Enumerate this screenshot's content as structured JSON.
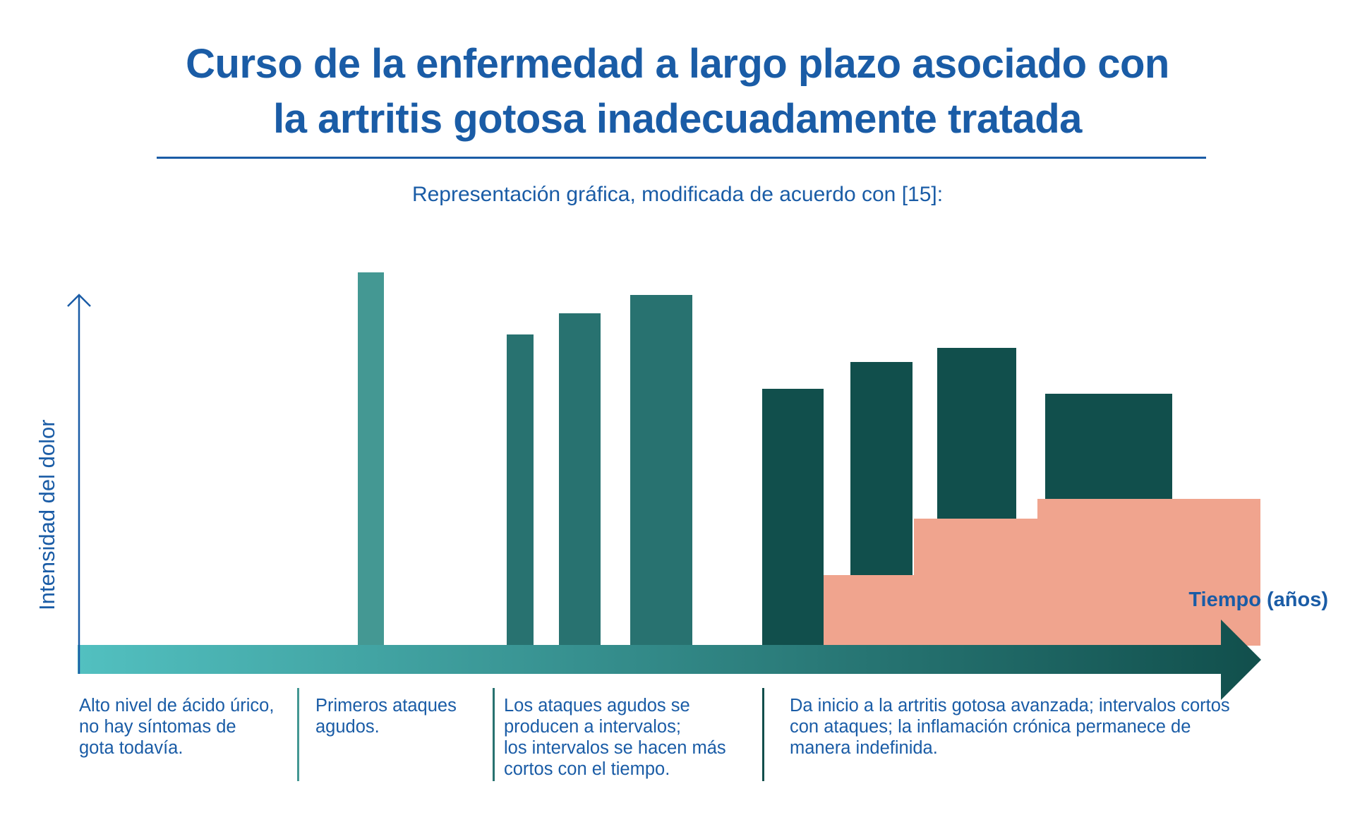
{
  "title": {
    "line1": "Curso de la enfermedad a largo plazo asociado con",
    "line2": "la artritis gotosa inadecuadamente tratada"
  },
  "subtitle": "Representación gráfica, modificada de acuerdo con [15]:",
  "axes": {
    "y_label": "Intensidad del dolor",
    "x_label": "Tiempo (años)"
  },
  "stages": [
    {
      "lines": [
        "Alto nivel de ácido úrico,",
        "no hay síntomas de",
        "gota todavía."
      ]
    },
    {
      "lines": [
        "Primeros ataques",
        "agudos."
      ]
    },
    {
      "lines": [
        "Los ataques agudos se",
        "producen a intervalos;",
        "los intervalos se hacen más",
        "cortos con el tiempo."
      ]
    },
    {
      "lines": [
        "Da inicio a la artritis gotosa avanzada; intervalos cortos",
        "con ataques; la inflamación crónica permanece de",
        "manera indefinida."
      ]
    }
  ],
  "colors": {
    "text": "#1a5ca6",
    "early_attack": "#449893",
    "recurring_attack": "#287270",
    "advanced_attack": "#114f4c",
    "chronic_inflammation": "#f0a48e",
    "arrow_start": "#52c0c0",
    "arrow_end": "#114f4c"
  },
  "icons": {
    "y_axis_arrow": "arrow-up-icon",
    "time_arrow": "arrow-right-icon"
  }
}
